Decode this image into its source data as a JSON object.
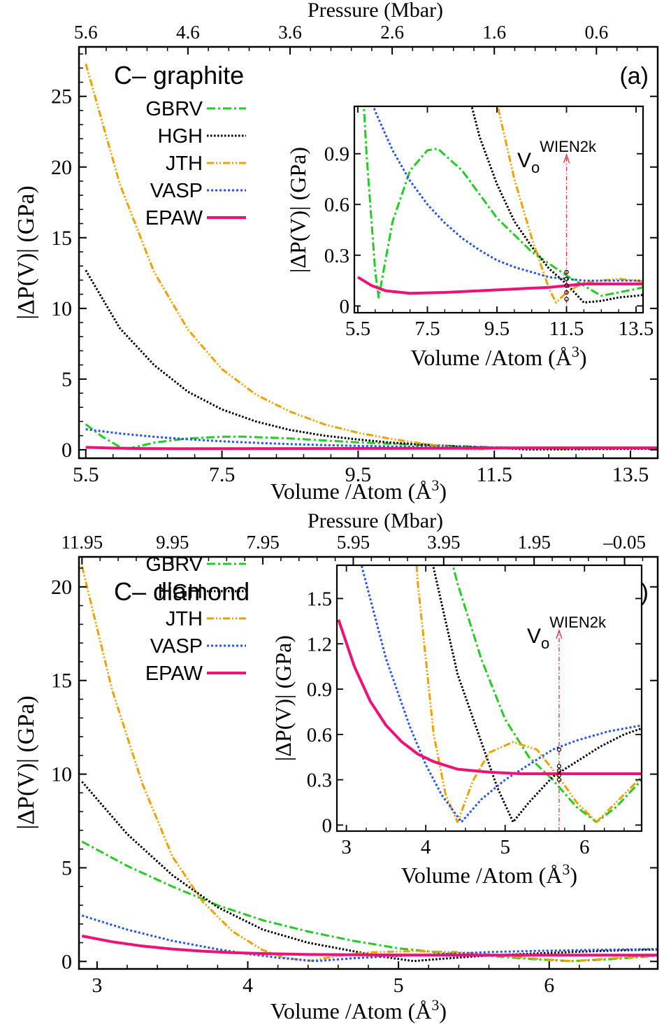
{
  "chart_data": [
    {
      "id": "a",
      "type": "line",
      "panel_label": "(a)",
      "title": "C– graphite",
      "xlabel": "Volume /Atom (Å",
      "xlabel_sup": "3",
      "xlabel_close": ")",
      "ylabel": "|ΔP(V)| (GPa)",
      "top_label": "Pressure (Mbar)",
      "xlim": [
        5.4,
        13.9
      ],
      "ylim": [
        -0.6,
        28.5
      ],
      "xticks": [
        5.5,
        7.5,
        9.5,
        11.5,
        13.5
      ],
      "xtick_labels": [
        "5.5",
        "7.5",
        "9.5",
        "11.5",
        "13.5"
      ],
      "yticks": [
        0,
        5,
        10,
        15,
        20,
        25
      ],
      "ytick_labels": [
        "0",
        "5",
        "10",
        "15",
        "20",
        "25"
      ],
      "top_ticks": [
        5.5,
        7.0,
        8.5,
        10.0,
        11.5,
        13.0
      ],
      "top_tick_labels": [
        "5.6",
        "4.6",
        "3.6",
        "2.6",
        "1.6",
        "0.6"
      ],
      "legend_position": "top-left",
      "series": [
        {
          "name": "GBRV",
          "color": "#22cc22",
          "dash": "12,4,3,4",
          "x": [
            5.5,
            5.75,
            6.0,
            6.1,
            6.5,
            7.0,
            7.5,
            7.8,
            8.5,
            9.5,
            10.5,
            11.5,
            12.5,
            13.5,
            13.9
          ],
          "y": [
            1.8,
            0.9,
            0.2,
            0.05,
            0.5,
            0.8,
            0.92,
            0.93,
            0.8,
            0.52,
            0.32,
            0.18,
            0.06,
            0.1,
            0.12
          ]
        },
        {
          "name": "HGH",
          "color": "#000000",
          "dash": "2.5,2.5",
          "x": [
            5.5,
            6.0,
            6.5,
            7.0,
            7.5,
            8.0,
            8.5,
            9.0,
            9.5,
            10.0,
            10.5,
            11.0,
            11.5,
            12.0,
            12.5,
            13.0,
            13.5,
            13.9
          ],
          "y": [
            12.7,
            8.6,
            6.0,
            4.1,
            2.85,
            2.0,
            1.4,
            1.0,
            0.72,
            0.5,
            0.35,
            0.22,
            0.13,
            0.02,
            0.03,
            0.05,
            0.06,
            0.07
          ]
        },
        {
          "name": "JTH",
          "color": "#f0a000",
          "dash": "10,3,2,3,2,3",
          "x": [
            5.5,
            6.0,
            6.5,
            7.0,
            7.5,
            8.0,
            8.5,
            9.0,
            9.5,
            10.0,
            10.5,
            11.0,
            11.2,
            11.5,
            12.0,
            12.5,
            13.0,
            13.5,
            13.9
          ],
          "y": [
            27.3,
            18.8,
            12.6,
            8.5,
            5.7,
            3.9,
            2.7,
            1.8,
            1.2,
            0.75,
            0.4,
            0.1,
            0.02,
            0.08,
            0.14,
            0.15,
            0.16,
            0.15,
            0.14
          ]
        },
        {
          "name": "VASP",
          "color": "#2255ee",
          "dash": "3,3",
          "x": [
            5.5,
            6.0,
            6.5,
            7.0,
            7.5,
            8.0,
            8.5,
            9.0,
            9.5,
            10.0,
            10.5,
            11.0,
            11.5,
            12.0,
            13.0,
            13.9
          ],
          "y": [
            1.45,
            1.15,
            0.92,
            0.74,
            0.6,
            0.49,
            0.4,
            0.33,
            0.27,
            0.23,
            0.2,
            0.17,
            0.16,
            0.15,
            0.15,
            0.15
          ]
        },
        {
          "name": "EPAW",
          "color": "#ee1177",
          "dash": "",
          "x": [
            5.5,
            5.9,
            6.3,
            7.0,
            8.0,
            9.0,
            10.0,
            11.0,
            11.5,
            12.0,
            13.0,
            13.9
          ],
          "y": [
            0.17,
            0.12,
            0.09,
            0.075,
            0.08,
            0.09,
            0.1,
            0.11,
            0.12,
            0.13,
            0.13,
            0.13
          ]
        }
      ],
      "inset": {
        "xlabel": "Volume /Atom (Å",
        "xlabel_sup": "3",
        "xlabel_close": ")",
        "ylabel": "|ΔP(V)| (GPa)",
        "xlim": [
          5.4,
          13.7
        ],
        "ylim": [
          -0.04,
          1.18
        ],
        "xticks": [
          5.5,
          7.5,
          9.5,
          11.5,
          13.5
        ],
        "xtick_labels": [
          "5.5",
          "7.5",
          "9.5",
          "11.5",
          "13.5"
        ],
        "yticks": [
          0,
          0.3,
          0.6,
          0.9
        ],
        "ytick_labels": [
          "0",
          "0.3",
          "0.6",
          "0.9"
        ],
        "v0": 11.5,
        "v0_main": "V",
        "v0_sub": "o",
        "v0_sup": "WIEN2k",
        "marker_values": [
          0.04,
          0.08,
          0.12,
          0.16,
          0.2
        ]
      }
    },
    {
      "id": "b",
      "type": "line",
      "panel_label": "(b)",
      "title": "C– diamond",
      "xlabel": "Volume /Atom (Å",
      "xlabel_sup": "3",
      "xlabel_close": ")",
      "ylabel": "|ΔP(V)| (GPa)",
      "top_label": "Pressure (Mbar)",
      "xlim": [
        2.88,
        6.72
      ],
      "ylim": [
        -0.4,
        21.6
      ],
      "xticks": [
        3,
        4,
        5,
        6
      ],
      "xtick_labels": [
        "3",
        "4",
        "5",
        "6"
      ],
      "yticks": [
        0,
        5,
        10,
        15,
        20
      ],
      "ytick_labels": [
        "0",
        "5",
        "10",
        "15",
        "20"
      ],
      "top_ticks": [
        2.9,
        3.5,
        4.1,
        4.7,
        5.3,
        5.9,
        6.5
      ],
      "top_tick_labels": [
        "11.95",
        "9.95",
        "7.95",
        "5.95",
        "3.95",
        "1.95",
        "–0.05"
      ],
      "legend_position": "top-left",
      "series": [
        {
          "name": "GBRV",
          "color": "#22cc22",
          "dash": "12,4,3,4",
          "x": [
            2.9,
            3.2,
            3.5,
            3.8,
            4.1,
            4.4,
            4.7,
            5.0,
            5.3,
            5.6,
            5.9,
            6.15,
            6.4,
            6.72
          ],
          "y": [
            6.4,
            5.1,
            4.0,
            3.0,
            2.2,
            1.6,
            1.1,
            0.7,
            0.45,
            0.3,
            0.12,
            0.02,
            0.12,
            0.3
          ]
        },
        {
          "name": "HGH",
          "color": "#000000",
          "dash": "2.5,2.5",
          "x": [
            2.9,
            3.2,
            3.5,
            3.8,
            4.1,
            4.4,
            4.7,
            4.9,
            5.1,
            5.3,
            5.6,
            5.9,
            6.2,
            6.5,
            6.72
          ],
          "y": [
            9.6,
            6.8,
            4.6,
            2.9,
            1.7,
            1.0,
            0.55,
            0.25,
            0.02,
            0.15,
            0.32,
            0.42,
            0.52,
            0.6,
            0.64
          ]
        },
        {
          "name": "JTH",
          "color": "#f0a000",
          "dash": "10,3,2,3,2,3",
          "x": [
            2.9,
            3.1,
            3.3,
            3.5,
            3.7,
            3.9,
            4.1,
            4.25,
            4.4,
            4.6,
            4.8,
            5.1,
            5.4,
            5.7,
            5.9,
            6.15,
            6.4,
            6.72
          ],
          "y": [
            21.1,
            14.5,
            9.5,
            5.6,
            3.2,
            1.6,
            0.6,
            0.2,
            0.02,
            0.3,
            0.48,
            0.55,
            0.5,
            0.3,
            0.15,
            0.02,
            0.15,
            0.32
          ]
        },
        {
          "name": "VASP",
          "color": "#2255ee",
          "dash": "3,3",
          "x": [
            2.9,
            3.2,
            3.5,
            3.8,
            4.0,
            4.2,
            4.45,
            4.7,
            5.0,
            5.3,
            5.6,
            5.9,
            6.3,
            6.72
          ],
          "y": [
            2.45,
            1.7,
            1.1,
            0.65,
            0.4,
            0.2,
            0.02,
            0.17,
            0.3,
            0.4,
            0.5,
            0.56,
            0.62,
            0.66
          ]
        },
        {
          "name": "EPAW",
          "color": "#ee1177",
          "dash": "",
          "x": [
            2.9,
            3.1,
            3.3,
            3.5,
            3.7,
            3.9,
            4.1,
            4.4,
            4.8,
            5.2,
            5.6,
            6.0,
            6.4,
            6.72
          ],
          "y": [
            1.36,
            1.05,
            0.82,
            0.66,
            0.55,
            0.47,
            0.42,
            0.37,
            0.35,
            0.34,
            0.34,
            0.34,
            0.34,
            0.34
          ]
        }
      ],
      "inset": {
        "xlabel": "Volume /Atom (Å",
        "xlabel_sup": "3",
        "xlabel_close": ")",
        "ylabel": "|ΔP(V)| (GPa)",
        "xlim": [
          2.88,
          6.72
        ],
        "ylim": [
          -0.04,
          1.72
        ],
        "xticks": [
          3,
          4,
          5,
          6
        ],
        "xtick_labels": [
          "3",
          "4",
          "5",
          "6"
        ],
        "yticks": [
          0,
          0.3,
          0.6,
          0.9,
          1.2,
          1.5
        ],
        "ytick_labels": [
          "0",
          "0.3",
          "0.6",
          "0.9",
          "1.2",
          "1.5"
        ],
        "v0": 5.68,
        "v0_main": "V",
        "v0_sub": "o",
        "v0_sup": "WIEN2k",
        "marker_values": [
          0.3,
          0.33,
          0.36,
          0.39,
          0.5
        ]
      }
    }
  ]
}
